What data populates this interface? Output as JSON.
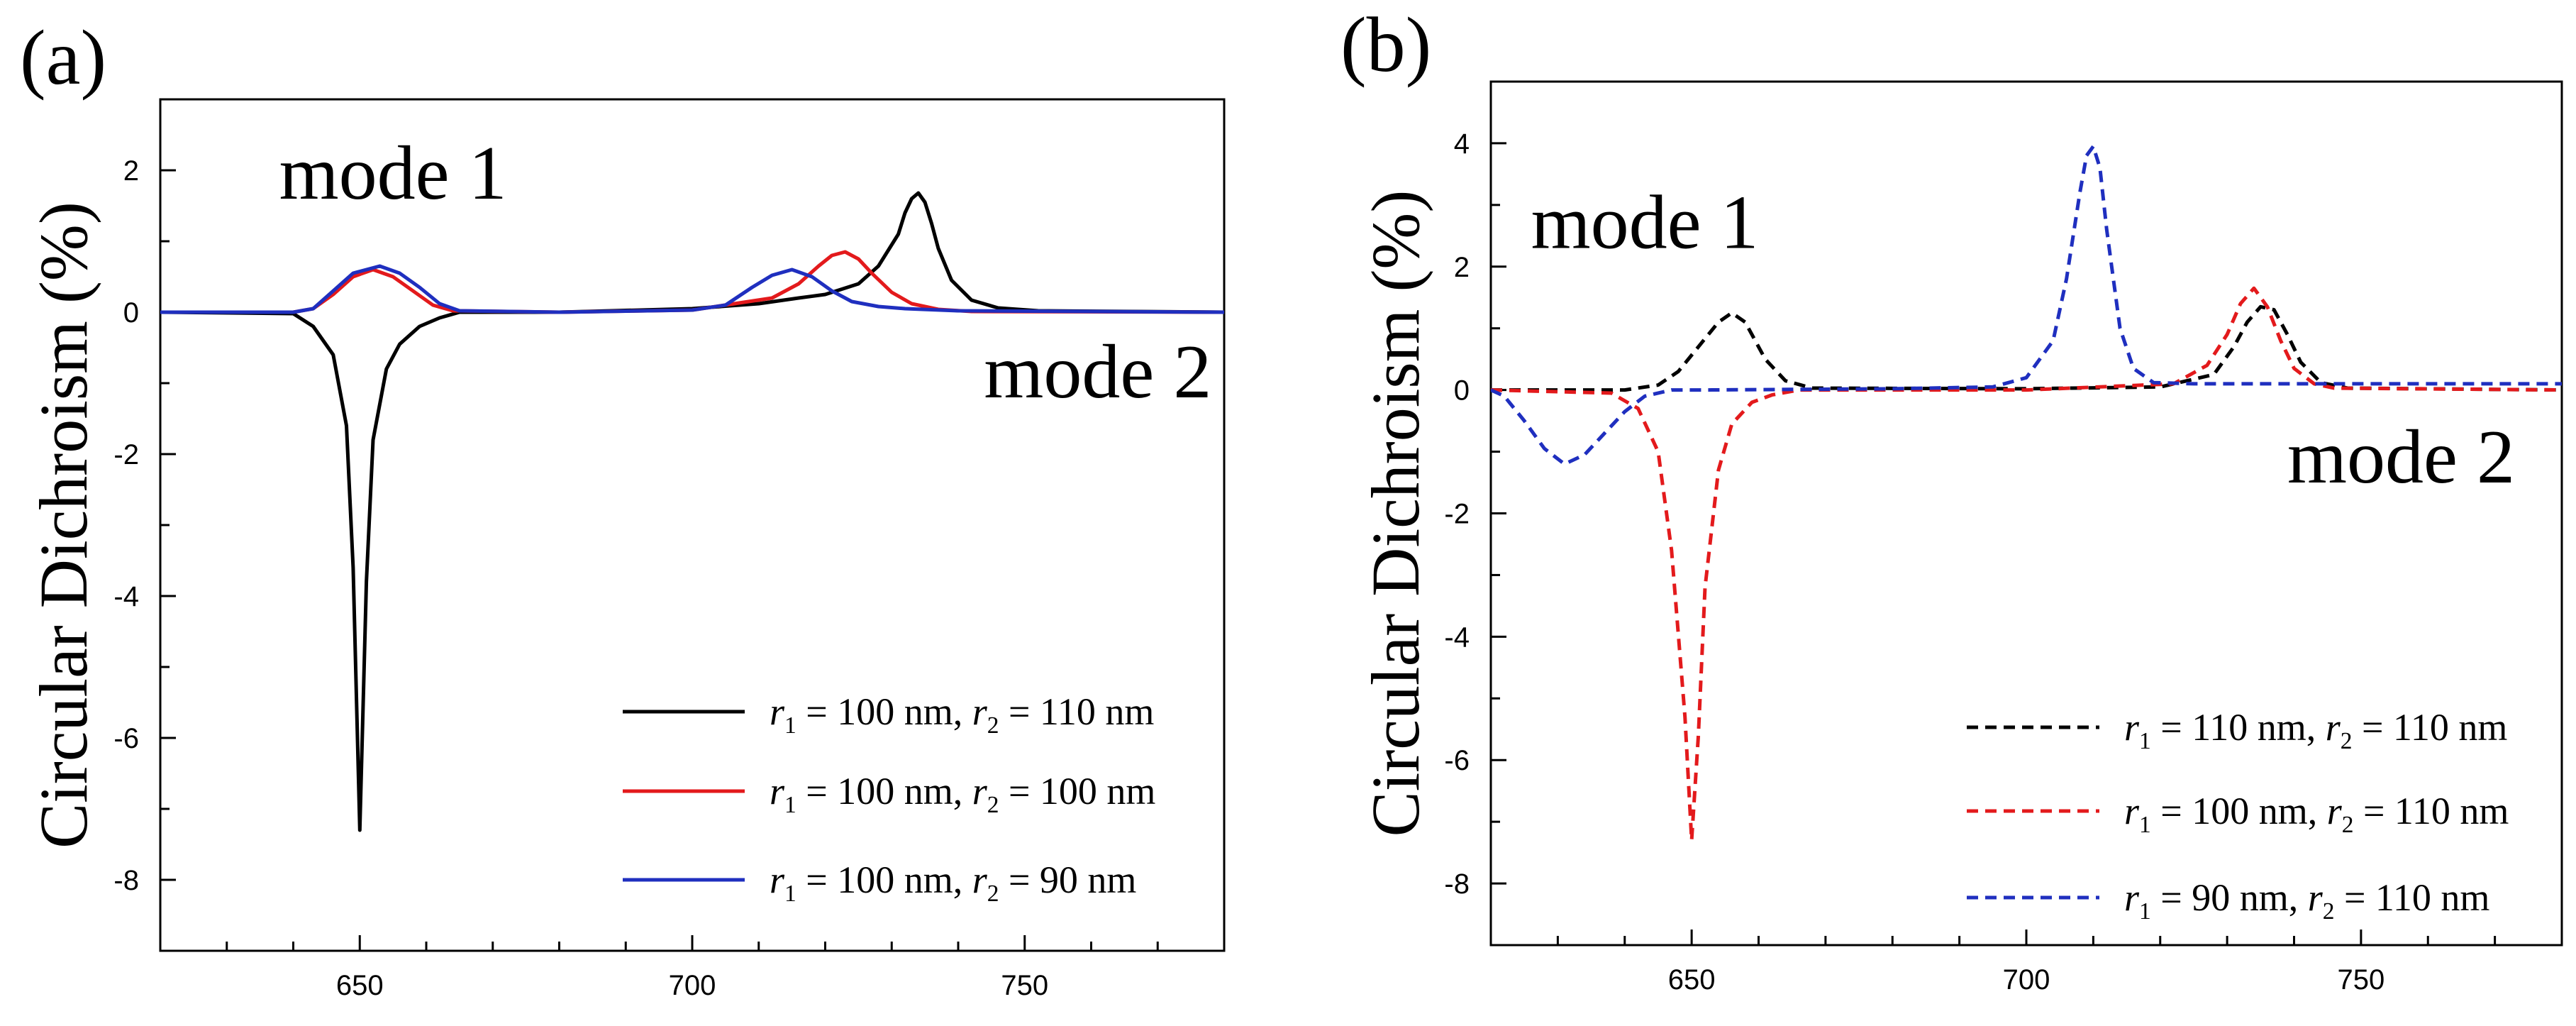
{
  "chart_data": [
    {
      "type": "line",
      "panel_label": "(a)",
      "ylabel": "Circular Dichroism (%)",
      "xlabel": "",
      "xlim": [
        620,
        780
      ],
      "ylim": [
        -9,
        3
      ],
      "x_ticks": [
        650,
        700,
        750
      ],
      "y_ticks": [
        2,
        0,
        -2,
        -4,
        -6,
        -8
      ],
      "grid": false,
      "legend_position": "bottom-right",
      "annotations": [
        {
          "text": "mode 1",
          "x": 655,
          "y": 1.6
        },
        {
          "text": "mode 2",
          "x": 761,
          "y": -1.2
        }
      ],
      "series": [
        {
          "name": "r1 = 100 nm, r2 = 110 nm",
          "legend": {
            "r1": "r",
            "s1": "1",
            "e1": " = 100 nm, ",
            "r2": "r",
            "s2": "2",
            "e2": " = 110 nm"
          },
          "color": "#000000",
          "dash": "solid",
          "x": [
            620,
            640,
            643,
            646,
            648,
            649,
            650,
            651,
            652,
            654,
            656,
            659,
            662,
            665,
            680,
            700,
            710,
            716,
            720,
            725,
            728,
            731,
            732,
            733,
            734,
            735,
            736,
            737,
            739,
            742,
            746,
            752,
            780
          ],
          "y": [
            0,
            -0.02,
            -0.2,
            -0.6,
            -1.6,
            -3.6,
            -7.3,
            -3.8,
            -1.8,
            -0.8,
            -0.45,
            -0.2,
            -0.08,
            0,
            0,
            0.05,
            0.12,
            0.2,
            0.25,
            0.4,
            0.65,
            1.1,
            1.4,
            1.6,
            1.68,
            1.55,
            1.25,
            0.9,
            0.45,
            0.17,
            0.06,
            0.02,
            0
          ]
        },
        {
          "name": "r1 = 100 nm, r2 = 100 nm",
          "legend": {
            "r1": "r",
            "s1": "1",
            "e1": " = 100 nm, ",
            "r2": "r",
            "s2": "2",
            "e2": " = 100 nm"
          },
          "color": "#e31a1c",
          "dash": "solid",
          "x": [
            620,
            640,
            643,
            646,
            649,
            652,
            655,
            658,
            661,
            664,
            680,
            700,
            712,
            716,
            719,
            721,
            723,
            725,
            727,
            730,
            733,
            737,
            742,
            780
          ],
          "y": [
            0,
            0,
            0.05,
            0.25,
            0.5,
            0.6,
            0.5,
            0.3,
            0.1,
            0.02,
            0,
            0.03,
            0.2,
            0.4,
            0.65,
            0.8,
            0.85,
            0.75,
            0.55,
            0.28,
            0.12,
            0.04,
            0.01,
            0
          ]
        },
        {
          "name": "r1 = 100 nm, r2 = 90 nm",
          "legend": {
            "r1": "r",
            "s1": "1",
            "e1": " = 100 nm, ",
            "r2": "r",
            "s2": "2",
            "e2": " = 90 nm"
          },
          "color": "#1f2fbf",
          "dash": "solid",
          "x": [
            620,
            640,
            643,
            646,
            649,
            653,
            656,
            659,
            662,
            665,
            680,
            700,
            705,
            709,
            712,
            715,
            718,
            721,
            724,
            728,
            732,
            740,
            780
          ],
          "y": [
            0,
            0,
            0.05,
            0.3,
            0.55,
            0.65,
            0.55,
            0.35,
            0.12,
            0.02,
            0,
            0.03,
            0.1,
            0.35,
            0.52,
            0.6,
            0.5,
            0.3,
            0.15,
            0.08,
            0.05,
            0.02,
            0
          ]
        }
      ]
    },
    {
      "type": "line",
      "panel_label": "(b)",
      "ylabel": "Circular Dichroism (%)",
      "xlabel": "",
      "xlim": [
        620,
        780
      ],
      "ylim": [
        -9,
        5
      ],
      "x_ticks": [
        650,
        700,
        750
      ],
      "y_ticks": [
        4,
        2,
        0,
        -2,
        -4,
        -6,
        -8
      ],
      "grid": false,
      "legend_position": "bottom-right",
      "annotations": [
        {
          "text": "mode 1",
          "x": 643,
          "y": 2.3
        },
        {
          "text": "mode 2",
          "x": 756,
          "y": -1.5
        }
      ],
      "series": [
        {
          "name": "r1 = 110 nm, r2 = 110 nm",
          "legend": {
            "r1": "r",
            "s1": "1",
            "e1": " = 110 nm, ",
            "r2": "r",
            "s2": "2",
            "e2": " = 110 nm"
          },
          "color": "#000000",
          "dash": "dashed",
          "x": [
            620,
            640,
            645,
            648,
            651,
            654,
            656,
            658,
            661,
            664,
            668,
            700,
            720,
            728,
            731,
            733,
            735,
            737,
            739,
            741,
            744,
            748,
            780
          ],
          "y": [
            0,
            0,
            0.08,
            0.3,
            0.7,
            1.1,
            1.25,
            1.1,
            0.5,
            0.15,
            0.03,
            0.02,
            0.05,
            0.25,
            0.7,
            1.1,
            1.35,
            1.3,
            0.9,
            0.45,
            0.12,
            0.03,
            0
          ]
        },
        {
          "name": "r1 = 100 nm, r2 = 110 nm",
          "legend": {
            "r1": "r",
            "s1": "1",
            "e1": " = 100 nm, ",
            "r2": "r",
            "s2": "2",
            "e2": " = 110 nm"
          },
          "color": "#e31a1c",
          "dash": "dashed",
          "x": [
            620,
            638,
            642,
            645,
            647,
            649,
            650,
            651,
            652,
            654,
            656,
            659,
            662,
            666,
            700,
            722,
            727,
            730,
            732,
            734,
            736,
            738,
            740,
            743,
            746,
            780
          ],
          "y": [
            0,
            -0.05,
            -0.3,
            -1.0,
            -2.6,
            -5.3,
            -7.3,
            -5.6,
            -3.2,
            -1.3,
            -0.55,
            -0.2,
            -0.08,
            0,
            0,
            0.1,
            0.4,
            0.9,
            1.4,
            1.65,
            1.35,
            0.8,
            0.35,
            0.1,
            0.03,
            0
          ]
        },
        {
          "name": "r1 = 90 nm, r2 = 110 nm",
          "legend": {
            "r1": "r",
            "s1": "1",
            "e1": " = 90 nm, ",
            "r2": "r",
            "s2": "2",
            "e2": " = 110 nm"
          },
          "color": "#1f2fbf",
          "dash": "dashed",
          "x": [
            620,
            622,
            625,
            628,
            631,
            634,
            637,
            640,
            643,
            647,
            652,
            680,
            695,
            700,
            704,
            706,
            708,
            709,
            710,
            711,
            712,
            714,
            716,
            719,
            725,
            740,
            780
          ],
          "y": [
            0,
            -0.1,
            -0.5,
            -0.95,
            -1.2,
            -1.05,
            -0.7,
            -0.35,
            -0.1,
            0,
            0,
            0.02,
            0.05,
            0.2,
            0.8,
            1.8,
            3.2,
            3.8,
            3.95,
            3.6,
            2.6,
            1.0,
            0.35,
            0.12,
            0.1,
            0.1,
            0.1
          ]
        }
      ]
    }
  ]
}
